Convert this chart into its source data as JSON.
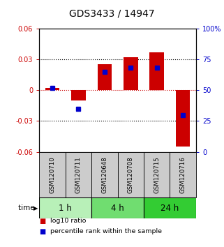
{
  "title": "GDS3433 / 14947",
  "categories": [
    "GSM120710",
    "GSM120711",
    "GSM120648",
    "GSM120708",
    "GSM120715",
    "GSM120716"
  ],
  "log10_ratio": [
    0.002,
    -0.01,
    0.025,
    0.032,
    0.037,
    -0.055
  ],
  "percentile_rank": [
    52,
    35,
    65,
    68,
    68,
    30
  ],
  "bar_color": "#cc0000",
  "dot_color": "#0000cc",
  "ylim_left": [
    -0.06,
    0.06
  ],
  "ylim_right": [
    0,
    100
  ],
  "yticks_left": [
    -0.06,
    -0.03,
    0,
    0.03,
    0.06
  ],
  "yticks_right": [
    0,
    25,
    50,
    75,
    100
  ],
  "ytick_labels_right": [
    "0",
    "25",
    "50",
    "75",
    "100%"
  ],
  "dotted_lines": [
    -0.03,
    0.03
  ],
  "zero_line": 0,
  "time_groups": [
    {
      "label": "1 h",
      "indices": [
        0,
        1
      ],
      "color": "#b8f0b8"
    },
    {
      "label": "4 h",
      "indices": [
        2,
        3
      ],
      "color": "#70dd70"
    },
    {
      "label": "24 h",
      "indices": [
        4,
        5
      ],
      "color": "#33cc33"
    }
  ],
  "legend_entries": [
    {
      "label": "log10 ratio",
      "color": "#cc0000"
    },
    {
      "label": "percentile rank within the sample",
      "color": "#0000cc"
    }
  ],
  "bar_width": 0.55,
  "title_fontsize": 10,
  "tick_fontsize": 7,
  "time_label": "time",
  "background_color": "#ffffff",
  "cell_color": "#cccccc"
}
